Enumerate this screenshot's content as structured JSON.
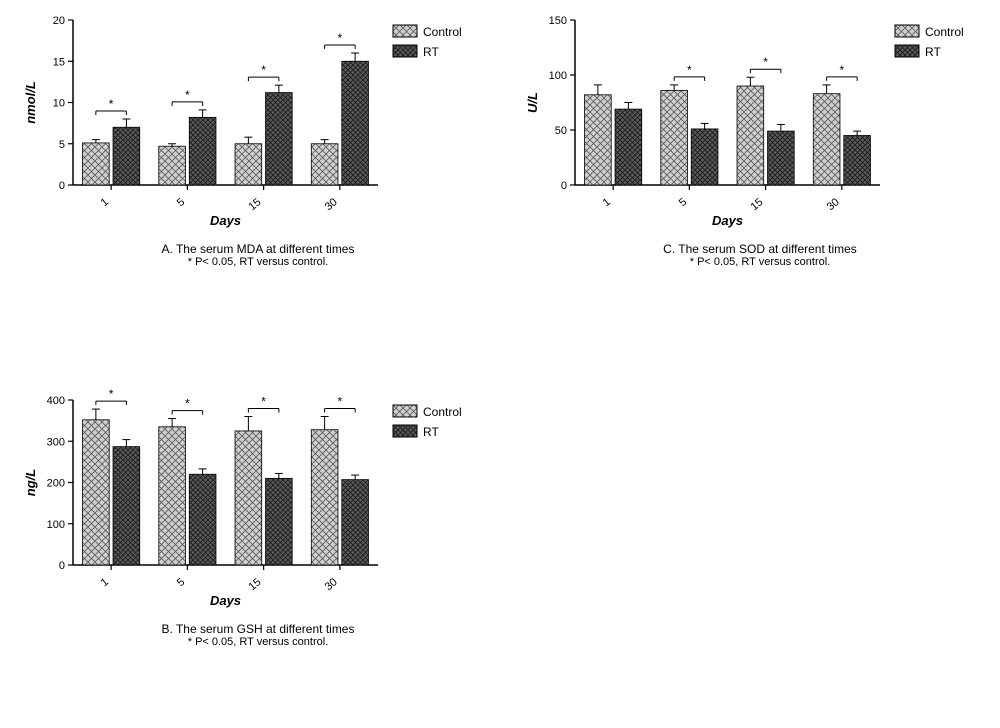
{
  "legend": {
    "control_label": "Control",
    "rt_label": "RT",
    "swatch_border": "#000000",
    "control_fill": "#cfcfcf",
    "rt_fill": "#5a5a5a"
  },
  "colors": {
    "background": "#ffffff",
    "axis": "#000000",
    "text": "#000000",
    "sig_line": "#000000",
    "control_bar_fill": "#cfcfcf",
    "rt_bar_fill": "#5a5a5a",
    "hatch": "#000000"
  },
  "typography": {
    "axis_label_fontsize": 13,
    "tick_fontsize": 11,
    "caption_fontsize": 12,
    "sub_fontsize": 11,
    "axis_label_style": "italic bold"
  },
  "chartA": {
    "type": "bar",
    "title": "A. The serum MDA at different times",
    "sub": "* P< 0.05, RT versus control.",
    "ylabel": "nmol/L",
    "xlabel": "Days",
    "categories": [
      "1",
      "5",
      "15",
      "30"
    ],
    "series": [
      {
        "name": "Control",
        "values": [
          5.1,
          4.7,
          5.0,
          5.0
        ],
        "err": [
          0.4,
          0.3,
          0.8,
          0.5
        ]
      },
      {
        "name": "RT",
        "values": [
          7.0,
          8.2,
          11.2,
          15.0
        ],
        "err": [
          1.0,
          0.9,
          0.9,
          1.0
        ]
      }
    ],
    "sig_pairs": [
      true,
      true,
      true,
      true
    ],
    "ylim": [
      0,
      20
    ],
    "ytick_step": 5,
    "bar_width": 0.35,
    "bar_gap": 0.05
  },
  "chartC": {
    "type": "bar",
    "title": "C. The serum SOD at different times",
    "sub": "* P< 0.05, RT versus control.",
    "ylabel": "U/L",
    "xlabel": "Days",
    "categories": [
      "1",
      "5",
      "15",
      "30"
    ],
    "series": [
      {
        "name": "Control",
        "values": [
          82,
          86,
          90,
          83
        ],
        "err": [
          9,
          5,
          8,
          8
        ]
      },
      {
        "name": "RT",
        "values": [
          69,
          51,
          49,
          45
        ],
        "err": [
          6,
          5,
          6,
          4
        ]
      }
    ],
    "sig_pairs": [
      false,
      true,
      true,
      true
    ],
    "ylim": [
      0,
      150
    ],
    "ytick_step": 50,
    "bar_width": 0.35,
    "bar_gap": 0.05
  },
  "chartB": {
    "type": "bar",
    "title": "B. The serum GSH at different times",
    "sub": "* P< 0.05, RT versus control.",
    "ylabel": "ng/L",
    "xlabel": "Days",
    "categories": [
      "1",
      "5",
      "15",
      "30"
    ],
    "series": [
      {
        "name": "Control",
        "values": [
          352,
          335,
          325,
          328
        ],
        "err": [
          26,
          20,
          35,
          32
        ]
      },
      {
        "name": "RT",
        "values": [
          287,
          220,
          210,
          207
        ],
        "err": [
          17,
          13,
          12,
          11
        ]
      }
    ],
    "sig_pairs": [
      true,
      true,
      true,
      true
    ],
    "ylim": [
      0,
      400
    ],
    "ytick_step": 100,
    "bar_width": 0.35,
    "bar_gap": 0.05
  }
}
